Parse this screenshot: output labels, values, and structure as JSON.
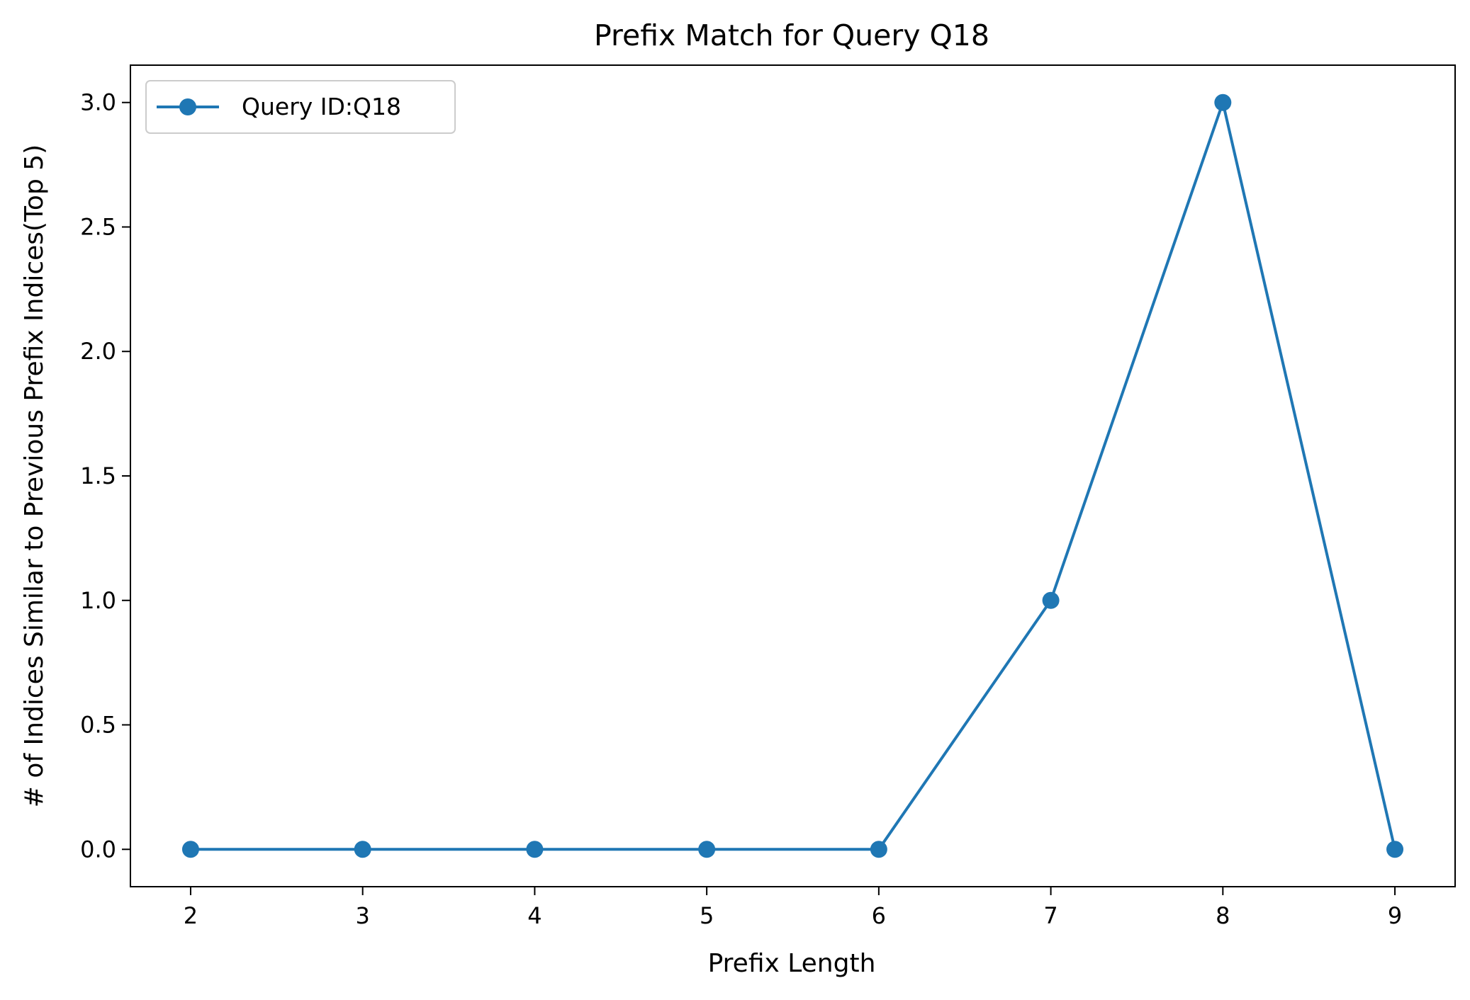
{
  "chart_data": {
    "type": "line",
    "title": "Prefix Match for Query Q18",
    "xlabel": "Prefix Length",
    "ylabel": "# of Indices Similar to Previous Prefix Indices(Top 5)",
    "x": [
      2,
      3,
      4,
      5,
      6,
      7,
      8,
      9
    ],
    "series": [
      {
        "name": "Query ID:Q18",
        "values": [
          0,
          0,
          0,
          0,
          0,
          1,
          3,
          0
        ],
        "color": "#1f77b4",
        "marker": "circle"
      }
    ],
    "xlim": [
      1.65,
      9.35
    ],
    "ylim": [
      -0.15,
      3.15
    ],
    "xticks": [
      2,
      3,
      4,
      5,
      6,
      7,
      8,
      9
    ],
    "xtick_labels": [
      "2",
      "3",
      "4",
      "5",
      "6",
      "7",
      "8",
      "9"
    ],
    "yticks": [
      0,
      0.5,
      1,
      1.5,
      2,
      2.5,
      3
    ],
    "ytick_labels": [
      "0.0",
      "0.5",
      "1.0",
      "1.5",
      "2.0",
      "2.5",
      "3.0"
    ],
    "grid": false,
    "legend_position": "upper-left"
  }
}
